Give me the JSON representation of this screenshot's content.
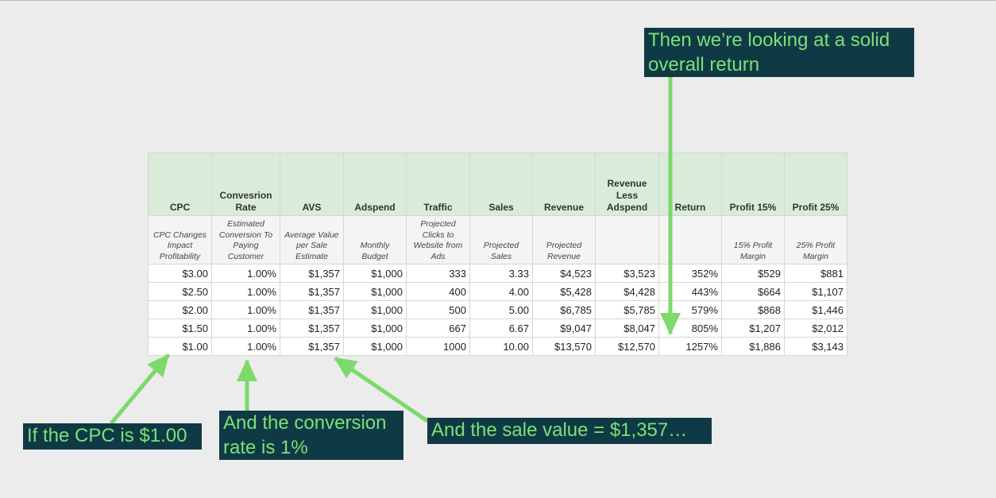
{
  "table": {
    "headers": [
      "CPC",
      "Convesrion Rate",
      "AVS",
      "Adspend",
      "Traffic",
      "Sales",
      "Revenue",
      "Revenue Less Adspend",
      "Return",
      "Profit 15%",
      "Profit 25%"
    ],
    "descriptions": [
      "CPC Changes Impact Profitability",
      "Estimated Conversion To Paying Customer",
      "Average Value per Sale Estimate",
      "Monthly Budget",
      "Projected Clicks to Website from Ads",
      "Projected Sales",
      "Projected Revenue",
      "",
      "",
      "15% Profit Margin",
      "25% Profit Margin"
    ],
    "rows": [
      [
        "$3.00",
        "1.00%",
        "$1,357",
        "$1,000",
        "333",
        "3.33",
        "$4,523",
        "$3,523",
        "352%",
        "$529",
        "$881"
      ],
      [
        "$2.50",
        "1.00%",
        "$1,357",
        "$1,000",
        "400",
        "4.00",
        "$5,428",
        "$4,428",
        "443%",
        "$664",
        "$1,107"
      ],
      [
        "$2.00",
        "1.00%",
        "$1,357",
        "$1,000",
        "500",
        "5.00",
        "$6,785",
        "$5,785",
        "579%",
        "$868",
        "$1,446"
      ],
      [
        "$1.50",
        "1.00%",
        "$1,357",
        "$1,000",
        "667",
        "6.67",
        "$9,047",
        "$8,047",
        "805%",
        "$1,207",
        "$2,012"
      ],
      [
        "$1.00",
        "1.00%",
        "$1,357",
        "$1,000",
        "1000",
        "10.00",
        "$13,570",
        "$12,570",
        "1257%",
        "$1,886",
        "$3,143"
      ]
    ]
  },
  "callouts": {
    "return_note": "Then we’re looking at a solid overall return",
    "cpc_note": "If the CPC is $1.00",
    "conversion_note": "And the conversion rate is 1%",
    "sale_value_note": "And the sale value = $1,357…"
  },
  "colors": {
    "header_fill": "#d9ecd9",
    "callout_fill": "#0f3a45",
    "callout_text": "#7ce07a",
    "arrow": "#7cd96a"
  }
}
